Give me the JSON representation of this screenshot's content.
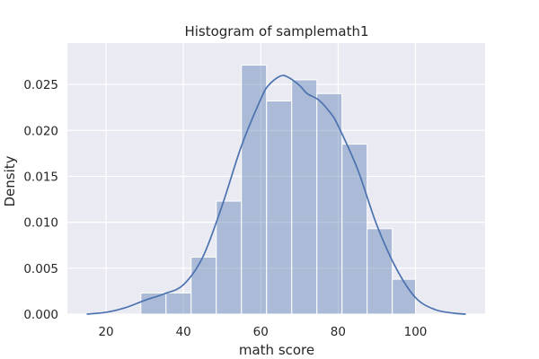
{
  "chart_data": {
    "type": "bar",
    "title": "Histogram of samplemath1",
    "xlabel": "math score",
    "ylabel": "Density",
    "xlim": [
      10,
      118
    ],
    "ylim": [
      0,
      0.0295
    ],
    "xticks": [
      20,
      40,
      60,
      80,
      100
    ],
    "yticks": [
      0.0,
      0.005,
      0.01,
      0.015,
      0.02,
      0.025
    ],
    "xtick_labels": [
      "20",
      "40",
      "60",
      "80",
      "100"
    ],
    "ytick_labels": [
      "0.000",
      "0.005",
      "0.010",
      "0.015",
      "0.020",
      "0.025"
    ],
    "grid": true,
    "bins": [
      {
        "start": 29.0,
        "end": 35.5,
        "density": 0.0023
      },
      {
        "start": 35.5,
        "end": 42.0,
        "density": 0.0023
      },
      {
        "start": 42.0,
        "end": 48.5,
        "density": 0.0062
      },
      {
        "start": 48.5,
        "end": 55.0,
        "density": 0.0123
      },
      {
        "start": 55.0,
        "end": 61.5,
        "density": 0.0271
      },
      {
        "start": 61.5,
        "end": 68.0,
        "density": 0.0232
      },
      {
        "start": 68.0,
        "end": 74.5,
        "density": 0.0255
      },
      {
        "start": 74.5,
        "end": 81.0,
        "density": 0.024
      },
      {
        "start": 81.0,
        "end": 87.5,
        "density": 0.0185
      },
      {
        "start": 87.5,
        "end": 94.0,
        "density": 0.0093
      },
      {
        "start": 94.0,
        "end": 100.0,
        "density": 0.0038
      }
    ],
    "kde": {
      "x": [
        15,
        20,
        25,
        30,
        35,
        40,
        45,
        50,
        55,
        60,
        62,
        65,
        67,
        70,
        72,
        75,
        78,
        80,
        85,
        90,
        95,
        100,
        105,
        110,
        113
      ],
      "y": [
        0.0,
        0.0002,
        0.0007,
        0.0015,
        0.0022,
        0.0032,
        0.0062,
        0.0118,
        0.0183,
        0.0234,
        0.0249,
        0.0259,
        0.0258,
        0.0249,
        0.024,
        0.0233,
        0.0219,
        0.0205,
        0.0158,
        0.0097,
        0.005,
        0.0018,
        0.0005,
        0.0001,
        0.0
      ]
    },
    "colors": {
      "background": "#eaeaf2",
      "grid": "#ffffff",
      "bar_fill": "#4c72b0",
      "bar_fill_opacity": 0.4,
      "bar_edge": "#ffffff",
      "kde_line": "#4c72b0"
    }
  }
}
